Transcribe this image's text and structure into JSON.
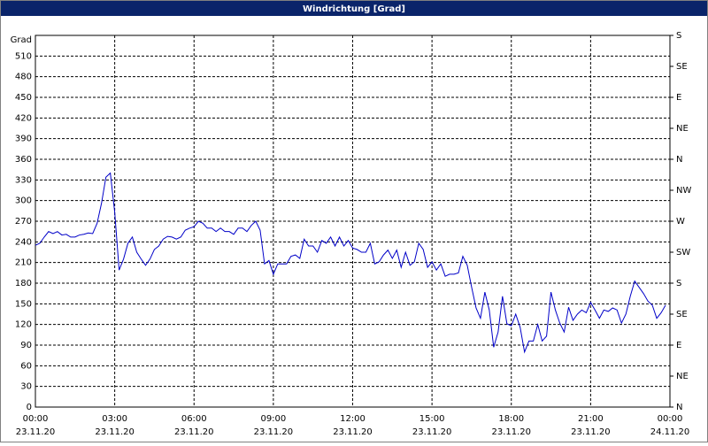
{
  "chart_data": {
    "type": "line",
    "title": "Windrichtung [Grad]",
    "ylabel": "Grad",
    "color": "#0000c8",
    "grid": true,
    "xlim": [
      0,
      1440
    ],
    "xticks": [
      {
        "value": 0,
        "label": "00:00"
      },
      {
        "value": 180,
        "label": "03:00"
      },
      {
        "value": 360,
        "label": "06:00"
      },
      {
        "value": 540,
        "label": "09:00"
      },
      {
        "value": 720,
        "label": "12:00"
      },
      {
        "value": 900,
        "label": "15:00"
      },
      {
        "value": 1080,
        "label": "18:00"
      },
      {
        "value": 1260,
        "label": "21:00"
      },
      {
        "value": 1440,
        "label": "00:00"
      }
    ],
    "xtick_dates": [
      "23.11.20",
      "23.11.20",
      "23.11.20",
      "23.11.20",
      "23.11.20",
      "23.11.20",
      "23.11.20",
      "23.11.20",
      "24.11.20"
    ],
    "ylim": [
      0,
      540
    ],
    "yticks": [
      0,
      30,
      60,
      90,
      120,
      150,
      180,
      210,
      240,
      270,
      300,
      330,
      360,
      390,
      420,
      450,
      480,
      510
    ],
    "y2lim": [
      0,
      540
    ],
    "y2ticks": [
      {
        "value": 0,
        "label": "N"
      },
      {
        "value": 45,
        "label": "NE"
      },
      {
        "value": 90,
        "label": "E"
      },
      {
        "value": 135,
        "label": "SE"
      },
      {
        "value": 180,
        "label": "S"
      },
      {
        "value": 225,
        "label": "SW"
      },
      {
        "value": 270,
        "label": "W"
      },
      {
        "value": 315,
        "label": "NW"
      },
      {
        "value": 360,
        "label": "N"
      },
      {
        "value": 405,
        "label": "NE"
      },
      {
        "value": 450,
        "label": "E"
      },
      {
        "value": 495,
        "label": "SE"
      },
      {
        "value": 540,
        "label": "S"
      }
    ],
    "x": [
      0,
      10,
      20,
      30,
      40,
      50,
      60,
      70,
      80,
      90,
      100,
      110,
      120,
      130,
      140,
      150,
      160,
      170,
      180,
      190,
      200,
      210,
      220,
      230,
      240,
      250,
      260,
      270,
      280,
      290,
      300,
      310,
      320,
      330,
      340,
      350,
      360,
      370,
      380,
      390,
      400,
      410,
      420,
      430,
      440,
      450,
      460,
      470,
      480,
      490,
      500,
      510,
      520,
      530,
      540,
      550,
      560,
      570,
      580,
      590,
      600,
      610,
      620,
      630,
      640,
      650,
      660,
      670,
      680,
      690,
      700,
      710,
      720,
      730,
      740,
      750,
      760,
      770,
      780,
      790,
      800,
      810,
      820,
      830,
      840,
      850,
      860,
      870,
      880,
      890,
      900,
      910,
      920,
      930,
      940,
      950,
      960,
      970,
      980,
      990,
      1000,
      1010,
      1020,
      1030,
      1040,
      1050,
      1060,
      1070,
      1080,
      1090,
      1100,
      1110,
      1120,
      1130,
      1140,
      1150,
      1160,
      1170,
      1180,
      1190,
      1200,
      1210,
      1220,
      1230,
      1240,
      1250,
      1260,
      1270,
      1280,
      1290,
      1300,
      1310,
      1320,
      1330,
      1340,
      1350,
      1360,
      1370,
      1380,
      1390,
      1400,
      1410,
      1420,
      1430
    ],
    "values": [
      235,
      238,
      247,
      255,
      252,
      255,
      250,
      251,
      247,
      247,
      250,
      251,
      253,
      252,
      267,
      296,
      334,
      340,
      283,
      199,
      215,
      238,
      247,
      225,
      215,
      206,
      215,
      229,
      234,
      244,
      248,
      247,
      244,
      247,
      257,
      260,
      262,
      270,
      267,
      260,
      260,
      255,
      260,
      255,
      255,
      251,
      260,
      260,
      255,
      264,
      270,
      257,
      208,
      213,
      193,
      208,
      208,
      208,
      219,
      221,
      216,
      244,
      234,
      234,
      225,
      242,
      238,
      247,
      234,
      247,
      234,
      242,
      231,
      229,
      225,
      225,
      238,
      208,
      211,
      221,
      228,
      216,
      228,
      203,
      225,
      206,
      211,
      238,
      229,
      203,
      211,
      199,
      208,
      190,
      193,
      193,
      195,
      219,
      206,
      174,
      144,
      129,
      167,
      141,
      87,
      109,
      161,
      121,
      118,
      135,
      116,
      80,
      96,
      96,
      120,
      96,
      103,
      167,
      141,
      122,
      109,
      145,
      126,
      135,
      141,
      137,
      152,
      141,
      129,
      141,
      139,
      144,
      141,
      122,
      135,
      161,
      183,
      174,
      165,
      154,
      148,
      129,
      137,
      148
    ]
  }
}
